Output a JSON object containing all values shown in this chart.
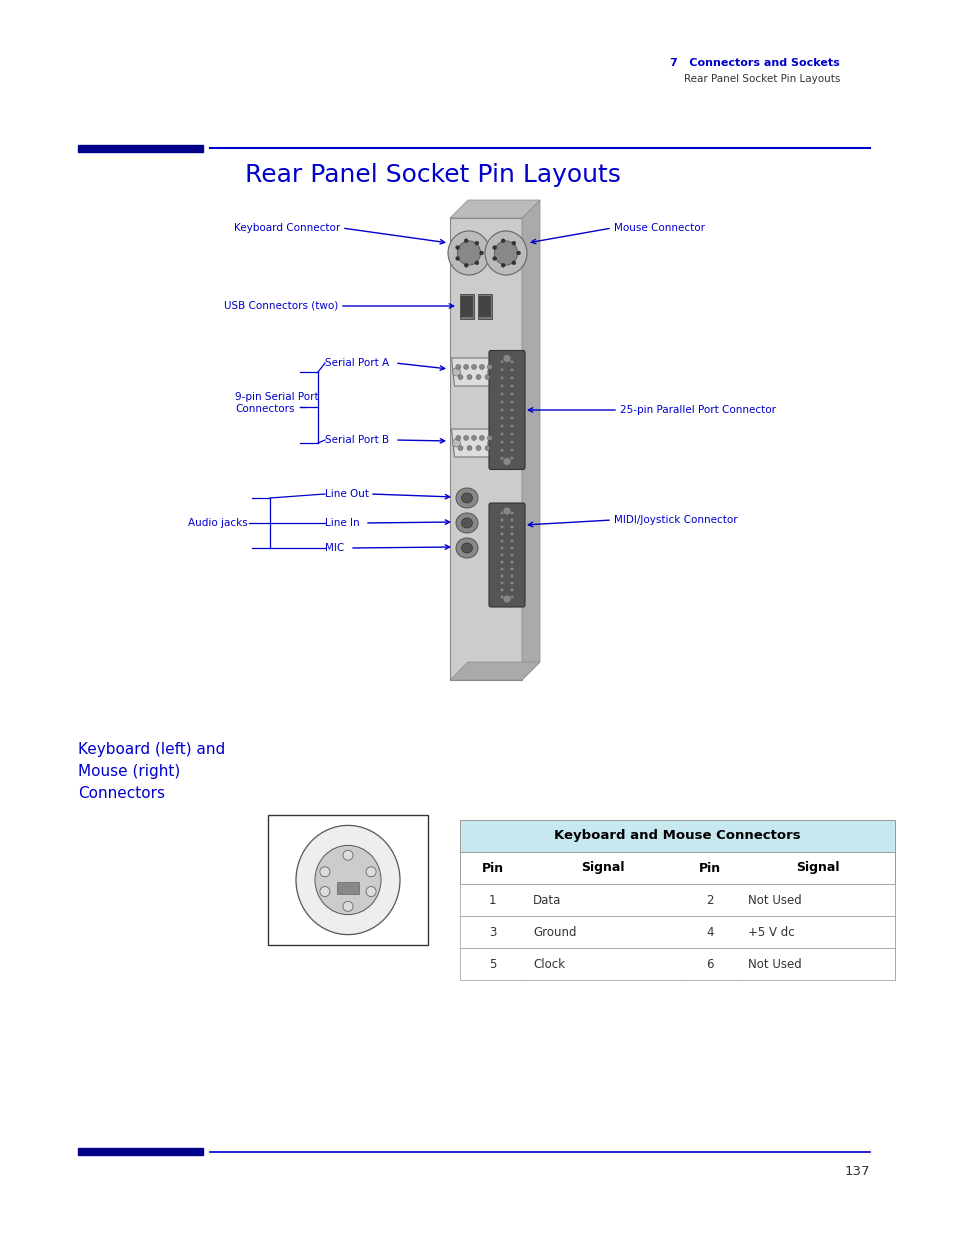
{
  "page_title": "Rear Panel Socket Pin Layouts",
  "header_chapter": "7   Connectors and Sockets",
  "header_subtitle": "Rear Panel Socket Pin Layouts",
  "blue_color": "#0000CC",
  "dark_blue": "#00008B",
  "section_label_line1": "Keyboard (left) and",
  "section_label_line2": "Mouse (right)",
  "section_label_line3": "Connectors",
  "table_title": "Keyboard and Mouse Connectors",
  "table_headers": [
    "Pin",
    "Signal",
    "Pin",
    "Signal"
  ],
  "table_rows": [
    [
      "1",
      "Data",
      "2",
      "Not Used"
    ],
    [
      "3",
      "Ground",
      "4",
      "+5 V dc"
    ],
    [
      "5",
      "Clock",
      "6",
      "Not Used"
    ]
  ],
  "page_number": "137",
  "bg_color": "#FFFFFF",
  "panel_face_color": "#CCCCCC",
  "panel_side_color": "#AAAAAA",
  "panel_top_color": "#BBBBBB"
}
